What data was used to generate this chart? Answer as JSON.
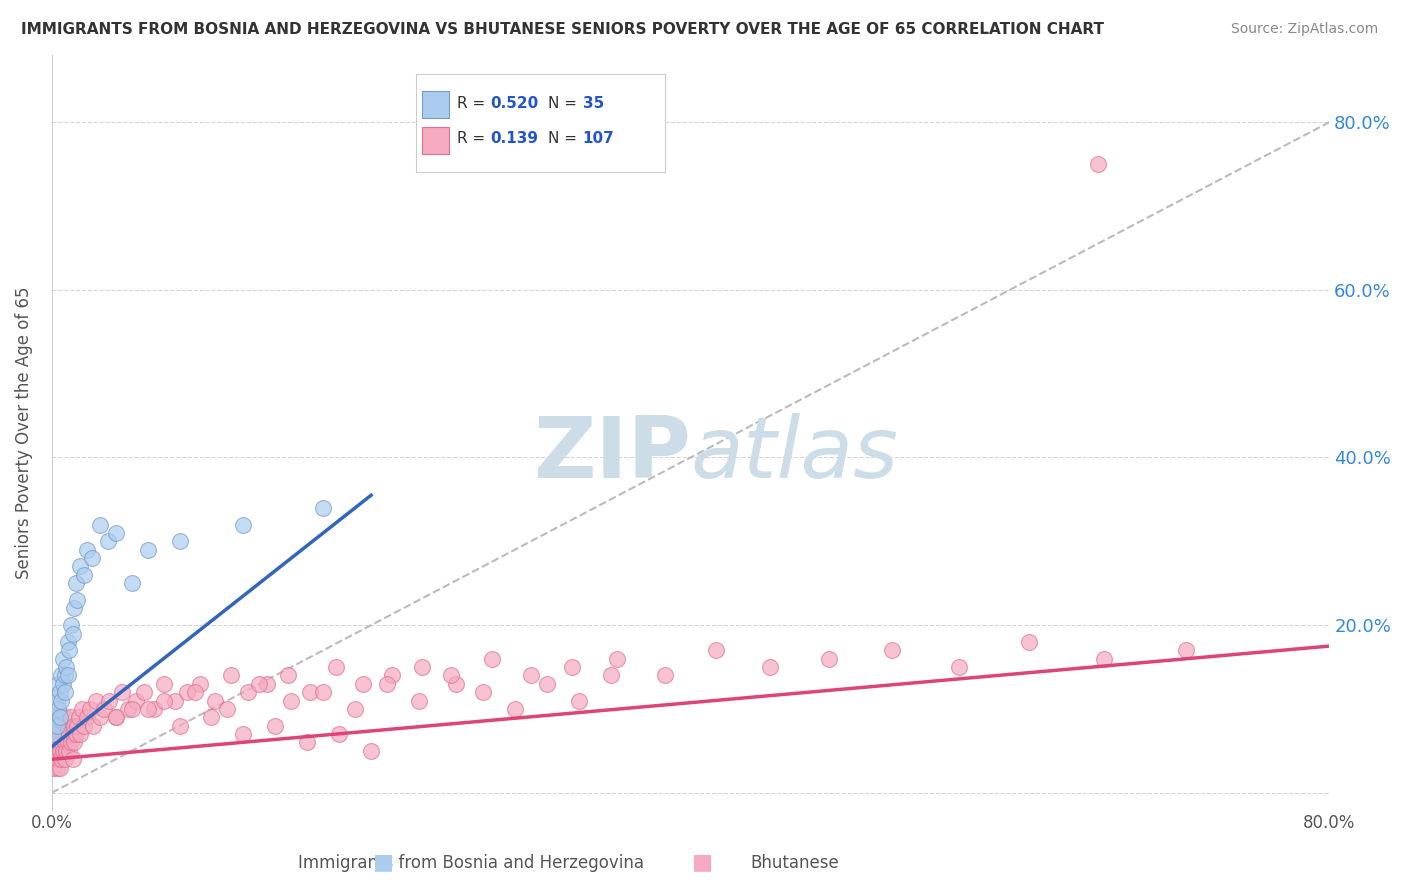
{
  "title": "IMMIGRANTS FROM BOSNIA AND HERZEGOVINA VS BHUTANESE SENIORS POVERTY OVER THE AGE OF 65 CORRELATION CHART",
  "source": "Source: ZipAtlas.com",
  "ylabel": "Seniors Poverty Over the Age of 65",
  "xlim": [
    0,
    0.8
  ],
  "ylim": [
    -0.02,
    0.88
  ],
  "ytick_positions": [
    0.0,
    0.2,
    0.4,
    0.6,
    0.8
  ],
  "ytick_labels": [
    "",
    "20.0%",
    "40.0%",
    "60.0%",
    "80.0%"
  ],
  "bosnia_R": 0.52,
  "bosnia_N": 35,
  "bhutan_R": 0.139,
  "bhutan_N": 107,
  "bosnia_color": "#aaccee",
  "bhutan_color": "#f5aabf",
  "bosnia_edge": "#7799cc",
  "bhutan_edge": "#e07090",
  "bosnia_line_color": "#3366bb",
  "bhutan_line_color": "#dd4477",
  "watermark_color": "#ccdde8",
  "legend_label_bosnia": "Immigrants from Bosnia and Herzegovina",
  "legend_label_bhutan": "Bhutanese",
  "background_color": "#ffffff",
  "grid_color": "#cccccc",
  "title_color": "#333333",
  "axis_label_color": "#555555",
  "tick_label_color": "#555555",
  "right_tick_color": "#3388dd",
  "bosnia_line_x0": 0.0,
  "bosnia_line_y0": 0.055,
  "bosnia_line_x1": 0.2,
  "bosnia_line_y1": 0.355,
  "bhutan_line_x0": 0.0,
  "bhutan_line_y0": 0.04,
  "bhutan_line_x1": 0.8,
  "bhutan_line_y1": 0.175,
  "dash_line_x0": 0.0,
  "dash_line_y0": 0.0,
  "dash_line_x1": 0.8,
  "dash_line_y1": 0.8,
  "bosnia_scatter_x": [
    0.001,
    0.002,
    0.003,
    0.003,
    0.004,
    0.004,
    0.005,
    0.005,
    0.006,
    0.006,
    0.007,
    0.007,
    0.008,
    0.008,
    0.009,
    0.01,
    0.01,
    0.011,
    0.012,
    0.013,
    0.014,
    0.015,
    0.016,
    0.018,
    0.02,
    0.022,
    0.025,
    0.03,
    0.035,
    0.04,
    0.05,
    0.06,
    0.08,
    0.12,
    0.17
  ],
  "bosnia_scatter_y": [
    0.07,
    0.09,
    0.08,
    0.11,
    0.1,
    0.13,
    0.09,
    0.12,
    0.11,
    0.14,
    0.13,
    0.16,
    0.14,
    0.12,
    0.15,
    0.14,
    0.18,
    0.17,
    0.2,
    0.19,
    0.22,
    0.25,
    0.23,
    0.27,
    0.26,
    0.29,
    0.28,
    0.32,
    0.3,
    0.31,
    0.25,
    0.29,
    0.3,
    0.32,
    0.34
  ],
  "bhutan_scatter_x": [
    0.001,
    0.001,
    0.002,
    0.002,
    0.002,
    0.003,
    0.003,
    0.003,
    0.004,
    0.004,
    0.004,
    0.005,
    0.005,
    0.005,
    0.006,
    0.006,
    0.006,
    0.007,
    0.007,
    0.008,
    0.008,
    0.008,
    0.009,
    0.009,
    0.01,
    0.01,
    0.011,
    0.011,
    0.012,
    0.012,
    0.013,
    0.013,
    0.014,
    0.014,
    0.015,
    0.016,
    0.017,
    0.018,
    0.019,
    0.02,
    0.022,
    0.024,
    0.026,
    0.028,
    0.03,
    0.033,
    0.036,
    0.04,
    0.044,
    0.048,
    0.053,
    0.058,
    0.064,
    0.07,
    0.077,
    0.085,
    0.093,
    0.102,
    0.112,
    0.123,
    0.135,
    0.148,
    0.162,
    0.178,
    0.195,
    0.213,
    0.232,
    0.253,
    0.276,
    0.3,
    0.326,
    0.354,
    0.384,
    0.416,
    0.45,
    0.487,
    0.526,
    0.568,
    0.612,
    0.659,
    0.71,
    0.05,
    0.07,
    0.09,
    0.11,
    0.13,
    0.15,
    0.17,
    0.19,
    0.21,
    0.23,
    0.25,
    0.27,
    0.29,
    0.31,
    0.33,
    0.35,
    0.04,
    0.06,
    0.08,
    0.1,
    0.12,
    0.14,
    0.16,
    0.18,
    0.2,
    0.655
  ],
  "bhutan_scatter_y": [
    0.03,
    0.05,
    0.04,
    0.06,
    0.08,
    0.03,
    0.05,
    0.07,
    0.04,
    0.06,
    0.09,
    0.03,
    0.05,
    0.07,
    0.04,
    0.06,
    0.08,
    0.05,
    0.07,
    0.04,
    0.06,
    0.09,
    0.05,
    0.07,
    0.06,
    0.08,
    0.05,
    0.07,
    0.06,
    0.09,
    0.07,
    0.04,
    0.08,
    0.06,
    0.07,
    0.08,
    0.09,
    0.07,
    0.1,
    0.08,
    0.09,
    0.1,
    0.08,
    0.11,
    0.09,
    0.1,
    0.11,
    0.09,
    0.12,
    0.1,
    0.11,
    0.12,
    0.1,
    0.13,
    0.11,
    0.12,
    0.13,
    0.11,
    0.14,
    0.12,
    0.13,
    0.14,
    0.12,
    0.15,
    0.13,
    0.14,
    0.15,
    0.13,
    0.16,
    0.14,
    0.15,
    0.16,
    0.14,
    0.17,
    0.15,
    0.16,
    0.17,
    0.15,
    0.18,
    0.16,
    0.17,
    0.1,
    0.11,
    0.12,
    0.1,
    0.13,
    0.11,
    0.12,
    0.1,
    0.13,
    0.11,
    0.14,
    0.12,
    0.1,
    0.13,
    0.11,
    0.14,
    0.09,
    0.1,
    0.08,
    0.09,
    0.07,
    0.08,
    0.06,
    0.07,
    0.05,
    0.75
  ]
}
